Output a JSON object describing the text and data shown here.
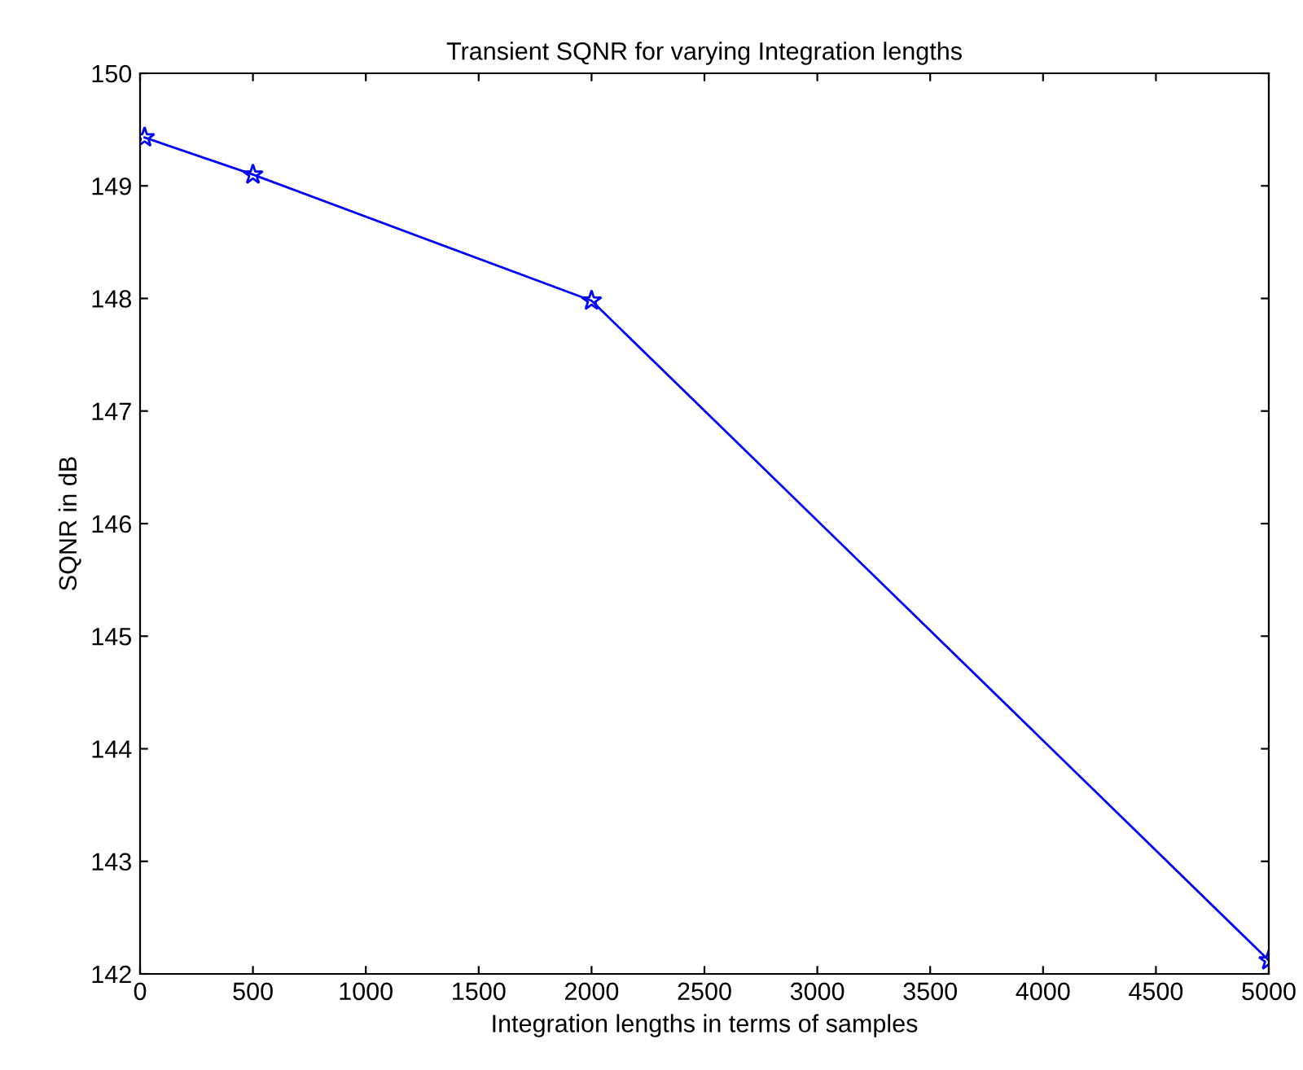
{
  "chart_data": {
    "type": "line",
    "title": "Transient SQNR for varying Integration lengths",
    "xlabel": "Integration lengths in terms of samples",
    "ylabel": "SQNR in dB",
    "x": [
      20,
      500,
      2000,
      5000
    ],
    "series": [
      {
        "color": "#0000ff",
        "values": [
          149.43,
          149.1,
          147.98,
          142.12
        ]
      }
    ],
    "xlim": [
      0,
      5000
    ],
    "xticks": [
      0,
      500,
      1000,
      1500,
      2000,
      2500,
      3000,
      3500,
      4000,
      4500,
      5000
    ],
    "ylim": [
      142,
      150
    ],
    "yticks": [
      142,
      143,
      144,
      145,
      146,
      147,
      148,
      149,
      150
    ],
    "marker": "star",
    "line_style": "solid"
  }
}
